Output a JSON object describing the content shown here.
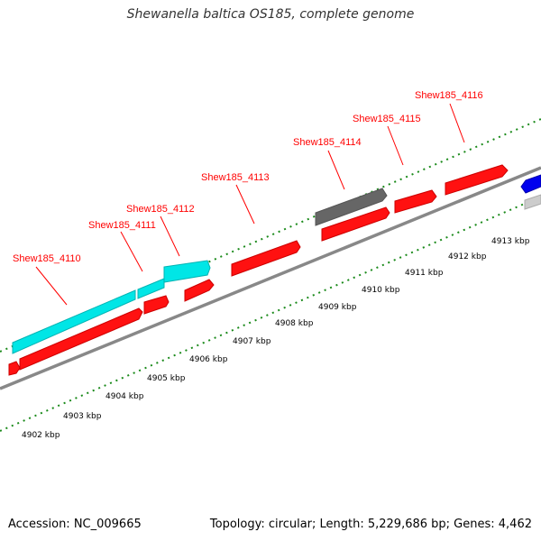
{
  "header": {
    "title": "Shewanella baltica OS185, complete genome"
  },
  "footer": {
    "accession": "Accession: NC_009665",
    "summary": "Topology: circular; Length: 5,229,686 bp; Genes: 4,462"
  },
  "ruler": {
    "labels": [
      "4902 kbp",
      "4903 kbp",
      "4904 kbp",
      "4905 kbp",
      "4906 kbp",
      "4907 kbp",
      "4908 kbp",
      "4909 kbp",
      "4910 kbp",
      "4911 kbp",
      "4912 kbp",
      "4913 kbp"
    ]
  },
  "genes": {
    "labels": [
      "Shew185_4110",
      "Shew185_4111",
      "Shew185_4112",
      "Shew185_4113",
      "Shew185_4114",
      "Shew185_4115",
      "Shew185_4116"
    ]
  },
  "colors": {
    "forward_gene": "#ff0000",
    "cds_feature": "#00ffff",
    "pseudo_feature": "#666666",
    "other_strand": "#0000ff",
    "backbone": "#888888",
    "tick": "#1a8a1a",
    "label": "#ff0000"
  }
}
